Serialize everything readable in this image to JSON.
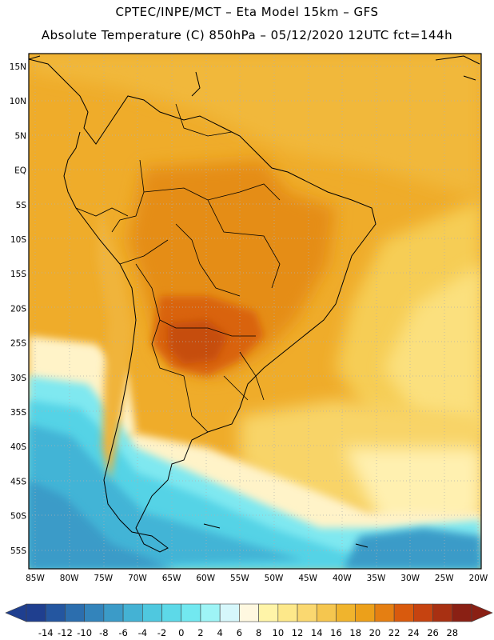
{
  "header": {
    "line1": "CPTEC/INPE/MCT –  Eta Model 15km – GFS",
    "line2": "Absolute Temperature (C) 850hPa – 05/12/2020 12UTC fct=144h"
  },
  "map": {
    "lat_labels": [
      "15N",
      "10N",
      "5N",
      "EQ",
      "5S",
      "10S",
      "15S",
      "20S",
      "25S",
      "30S",
      "35S",
      "40S",
      "45S",
      "50S",
      "55S"
    ],
    "lon_labels": [
      "85W",
      "80W",
      "75W",
      "70W",
      "65W",
      "60W",
      "55W",
      "50W",
      "45W",
      "40W",
      "35W",
      "30W",
      "25W",
      "20W"
    ]
  },
  "colorbar": {
    "labels": [
      "-14",
      "-12",
      "-10",
      "-8",
      "-6",
      "-4",
      "-2",
      "0",
      "2",
      "4",
      "6",
      "8",
      "10",
      "12",
      "14",
      "16",
      "18",
      "20",
      "22",
      "24",
      "26",
      "28"
    ],
    "colors": [
      "#1f3f8f",
      "#2456a0",
      "#2c6eae",
      "#3384bb",
      "#3b9bc8",
      "#44b2d4",
      "#4fc8df",
      "#5dd9e8",
      "#72e8f0",
      "#9ef4f6",
      "#d6f7fb",
      "#fff8e0",
      "#fff4a8",
      "#fde88a",
      "#fad870",
      "#f5c64f",
      "#f0b42d",
      "#eca01a",
      "#e57f12",
      "#d95a0d",
      "#c64310",
      "#a83012",
      "#8a2014"
    ]
  }
}
